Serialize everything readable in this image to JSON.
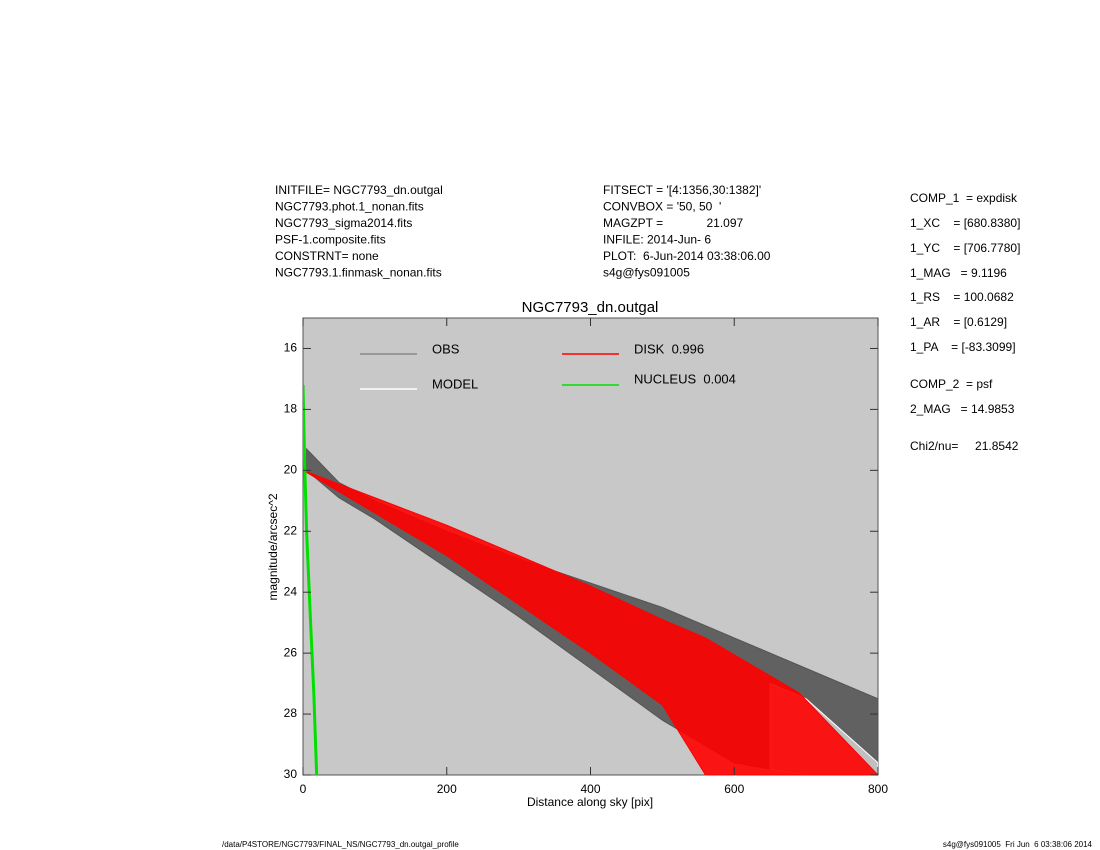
{
  "info": {
    "left": [
      "INITFILE= NGC7793_dn.outgal",
      "NGC7793.phot.1_nonan.fits",
      "NGC7793_sigma2014.fits",
      "PSF-1.composite.fits",
      "CONSTRNT= none",
      "NGC7793.1.finmask_nonan.fits"
    ],
    "middle": [
      "FITSECT = '[4:1356,30:1382]'",
      "CONVBOX = '50, 50  '",
      "MAGZPT =             21.097",
      "INFILE: 2014-Jun- 6",
      "PLOT:  6-Jun-2014 03:38:06.00",
      "s4g@fys091005"
    ],
    "right": [
      "COMP_1  = expdisk",
      "1_XC    = [680.8380]",
      "1_YC    = [706.7780]",
      "1_MAG   = 9.1196",
      "1_RS    = 100.0682",
      "1_AR    = [0.6129]",
      "1_PA    = [-83.3099]",
      "COMP_2  = psf",
      "2_MAG   = 14.9853",
      "Chi2/nu=     21.8542"
    ],
    "footer_left": "/data/P4STORE/NGC7793/FINAL_NS/NGC7793_dn.outgal_profile",
    "footer_right": "s4g@fys091005  Fri Jun  6 03:38:06 2014"
  },
  "chart_data": {
    "type": "band",
    "title": "NGC7793_dn.outgal",
    "xlabel": "Distance along sky [pix]",
    "ylabel": "magnitude/arcsec^2",
    "xlim": [
      0,
      800
    ],
    "xticks": [
      0,
      200,
      400,
      600,
      800
    ],
    "ylim": [
      30,
      15
    ],
    "yticks": [
      16,
      18,
      20,
      22,
      24,
      26,
      28,
      30
    ],
    "series": [
      {
        "name": "OBS",
        "color": "#555555",
        "x": [
          5,
          50,
          100,
          200,
          300,
          400,
          500,
          600,
          700,
          800
        ],
        "values": [
          19.3,
          20.4,
          21.0,
          22.0,
          22.9,
          23.7,
          24.5,
          25.5,
          26.5,
          27.5
        ],
        "values_faint": [
          20.0,
          20.9,
          21.6,
          23.2,
          24.8,
          26.5,
          28.2,
          29.6,
          30,
          30
        ]
      },
      {
        "name": "MODEL",
        "color": "#ffffff",
        "x": [
          650,
          700,
          800
        ],
        "values": [
          27.0,
          27.5,
          29.6
        ],
        "values_faint": [
          29.8,
          30,
          30
        ]
      },
      {
        "name": "DISK  0.996",
        "color": "#ff0000",
        "x": [
          0,
          100,
          200,
          300,
          400,
          500,
          560,
          690,
          800
        ],
        "values": [
          20.0,
          20.9,
          21.8,
          22.8,
          23.8,
          24.9,
          25.5,
          27.3,
          30
        ],
        "values_faint": [
          20.0,
          21.4,
          22.8,
          24.4,
          26.0,
          27.7,
          30,
          30,
          30
        ]
      },
      {
        "name": "NUCLEUS  0.004",
        "color": "#00e000",
        "x": [
          0,
          2,
          5,
          10,
          15,
          19
        ],
        "values": [
          17.2,
          19.5,
          22.0,
          24.7,
          27.3,
          30
        ]
      }
    ]
  }
}
